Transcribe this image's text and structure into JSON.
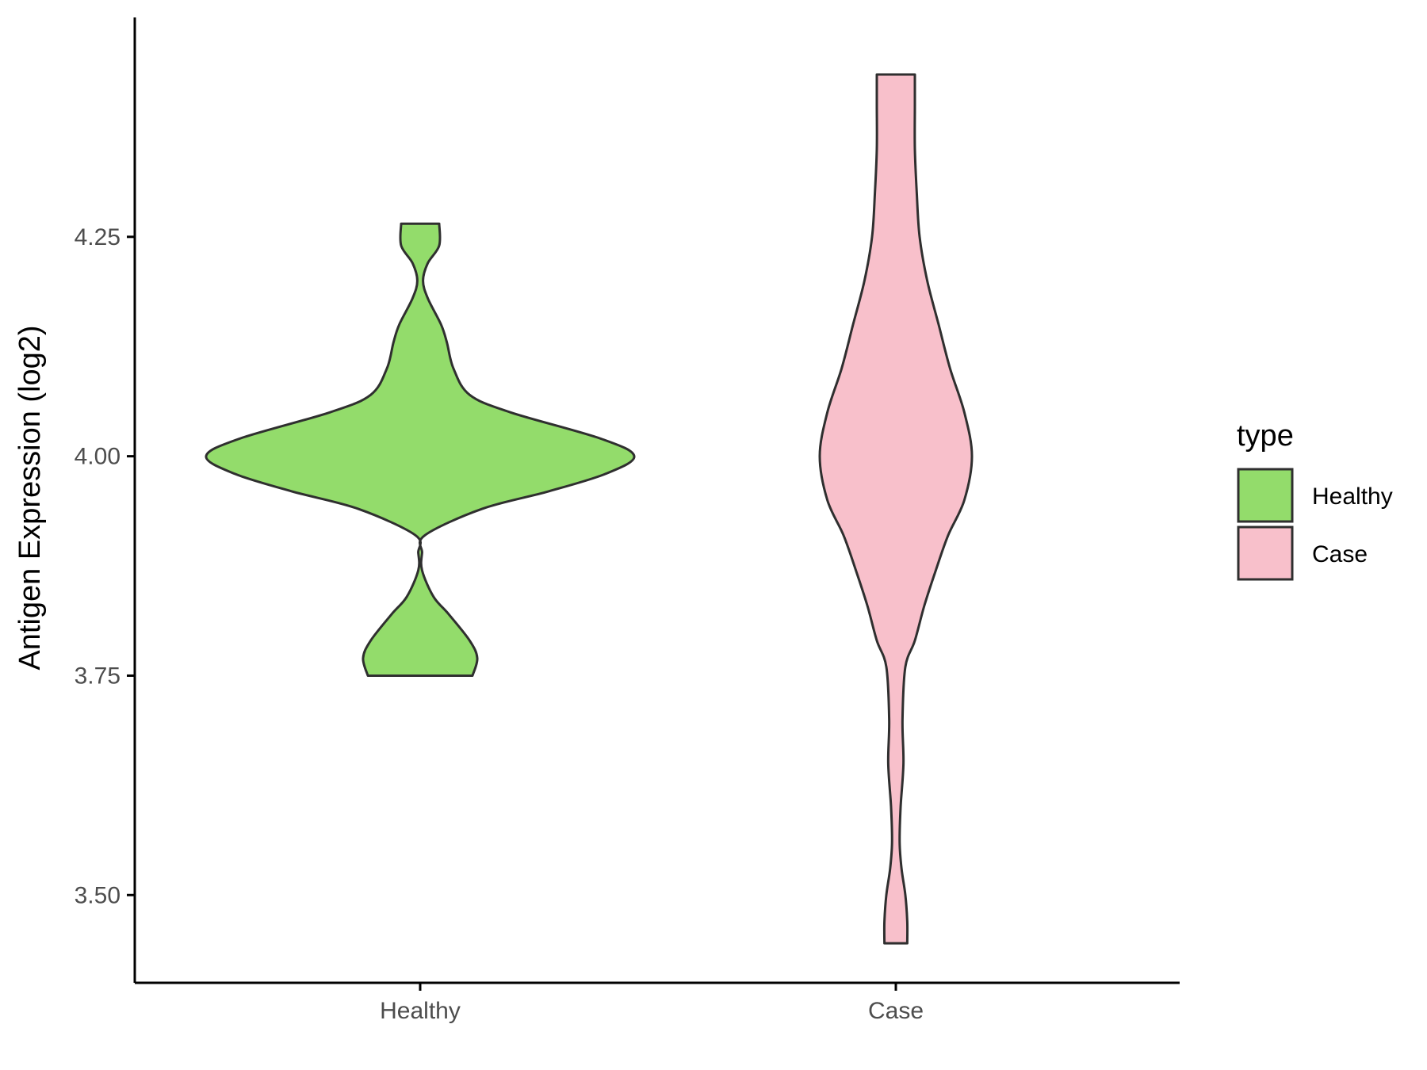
{
  "chart_data": {
    "type": "violin",
    "xlabel": "",
    "ylabel": "Antigen Expression (log2)",
    "categories": [
      "Healthy",
      "Case"
    ],
    "ylim": [
      3.4,
      4.5
    ],
    "yticks": [
      "3.50",
      "3.75",
      "4.00",
      "4.25"
    ],
    "ytick_values": [
      3.5,
      3.75,
      4.0,
      4.25
    ],
    "grid": false,
    "legend": {
      "title": "type",
      "position": "right",
      "entries": [
        "Healthy",
        "Case"
      ]
    },
    "colors": {
      "Healthy": "#93dc6b",
      "Case": "#f8c0cb",
      "outline": "#2f2f2f"
    },
    "series": [
      {
        "name": "Healthy",
        "min": 3.75,
        "max": 4.265,
        "density_profile": [
          [
            3.75,
            0.55
          ],
          [
            3.77,
            0.6
          ],
          [
            3.79,
            0.52
          ],
          [
            3.82,
            0.3
          ],
          [
            3.84,
            0.14
          ],
          [
            3.87,
            0.02
          ],
          [
            3.89,
            0.02
          ],
          [
            3.91,
            0.05
          ],
          [
            3.94,
            0.65
          ],
          [
            3.96,
            1.35
          ],
          [
            3.98,
            1.95
          ],
          [
            4.0,
            2.25
          ],
          [
            4.02,
            1.9
          ],
          [
            4.05,
            0.95
          ],
          [
            4.07,
            0.52
          ],
          [
            4.1,
            0.35
          ],
          [
            4.13,
            0.28
          ],
          [
            4.15,
            0.22
          ],
          [
            4.18,
            0.08
          ],
          [
            4.2,
            0.03
          ],
          [
            4.22,
            0.08
          ],
          [
            4.24,
            0.2
          ],
          [
            4.265,
            0.2
          ]
        ]
      },
      {
        "name": "Case",
        "min": 3.445,
        "max": 4.435,
        "density_profile": [
          [
            3.445,
            0.12
          ],
          [
            3.47,
            0.12
          ],
          [
            3.5,
            0.1
          ],
          [
            3.53,
            0.06
          ],
          [
            3.56,
            0.04
          ],
          [
            3.6,
            0.05
          ],
          [
            3.65,
            0.08
          ],
          [
            3.7,
            0.07
          ],
          [
            3.76,
            0.1
          ],
          [
            3.79,
            0.2
          ],
          [
            3.83,
            0.3
          ],
          [
            3.87,
            0.42
          ],
          [
            3.91,
            0.55
          ],
          [
            3.95,
            0.72
          ],
          [
            4.0,
            0.8
          ],
          [
            4.05,
            0.72
          ],
          [
            4.1,
            0.57
          ],
          [
            4.15,
            0.45
          ],
          [
            4.2,
            0.33
          ],
          [
            4.25,
            0.25
          ],
          [
            4.3,
            0.22
          ],
          [
            4.35,
            0.2
          ],
          [
            4.4,
            0.2
          ],
          [
            4.435,
            0.2
          ]
        ]
      }
    ]
  }
}
